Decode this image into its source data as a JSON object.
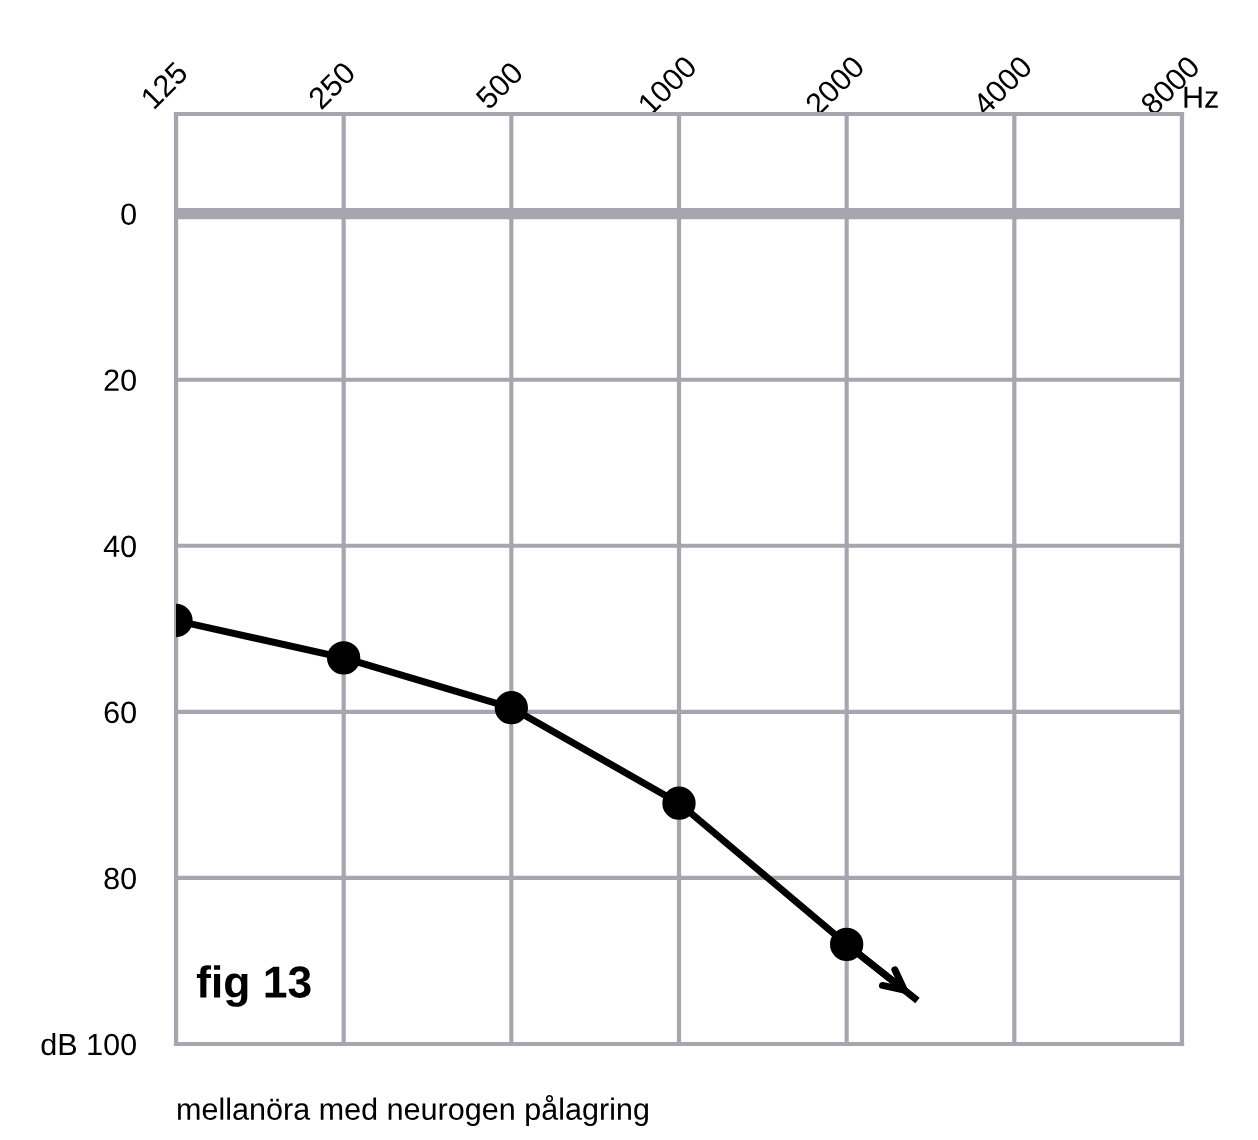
{
  "chart_data": {
    "type": "line",
    "x": [
      125,
      250,
      500,
      1000,
      2000
    ],
    "series": [
      {
        "color": "#000000",
        "values": [
          49,
          53.5,
          59.5,
          71,
          88
        ],
        "marker": "circle"
      },
      {
        "color": "#000000",
        "x": [
          2000,
          2650
        ],
        "values": [
          88,
          94.5
        ],
        "marker": "none"
      }
    ],
    "log": "x",
    "xlim": [
      125,
      8000
    ],
    "xticks": [
      125,
      250,
      500,
      1000,
      2000,
      4000,
      8000
    ],
    "ylim": [
      100,
      -12
    ],
    "yticks": [
      0,
      20,
      40,
      60,
      80,
      {
        "value": 100,
        "label": "dB 100"
      }
    ],
    "xlabel": "Hz",
    "grid": true,
    "ref_lines": [
      {
        "axis": "y",
        "value": 0,
        "label": null,
        "color": "#a7a5ad"
      }
    ],
    "annotations": [
      "fig 13",
      "mellanöra med neurogen pålagring"
    ]
  }
}
